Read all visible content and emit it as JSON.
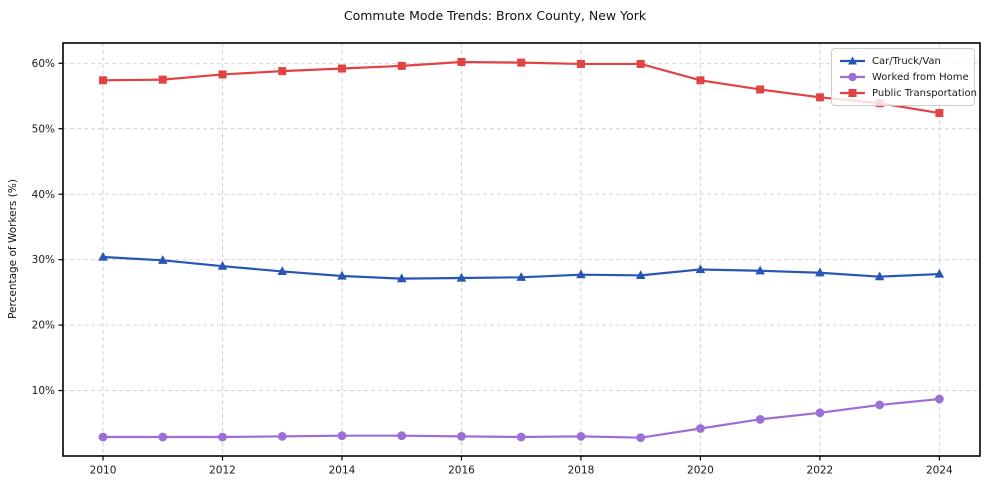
{
  "chart_data": {
    "type": "line",
    "title": "Commute Mode Trends: Bronx County, New York",
    "xlabel": "",
    "ylabel": "Percentage of Workers (%)",
    "x": [
      2010,
      2011,
      2012,
      2013,
      2014,
      2015,
      2016,
      2017,
      2018,
      2019,
      2020,
      2021,
      2022,
      2023,
      2024
    ],
    "x_tick_labels": [
      "2010",
      "2012",
      "2014",
      "2016",
      "2018",
      "2020",
      "2022",
      "2024"
    ],
    "x_ticks": [
      2010,
      2012,
      2014,
      2016,
      2018,
      2020,
      2022,
      2024
    ],
    "y_ticks": [
      10,
      20,
      30,
      40,
      50,
      60
    ],
    "y_tick_suffix": "%",
    "xlim": [
      2009.33,
      2024.68
    ],
    "ylim": [
      0,
      63.1
    ],
    "grid": true,
    "grid_style": "dashed",
    "legend_position": "upper right",
    "series": [
      {
        "name": "Car/Truck/Van",
        "color": "#2856b4",
        "marker": "triangle",
        "values": [
          30.4,
          29.9,
          29.0,
          28.2,
          27.5,
          27.1,
          27.2,
          27.3,
          27.7,
          27.6,
          28.5,
          28.3,
          28.0,
          27.4,
          27.8
        ]
      },
      {
        "name": "Worked from Home",
        "color": "#9b6fd6",
        "marker": "circle",
        "values": [
          2.9,
          2.9,
          2.9,
          3.0,
          3.1,
          3.1,
          3.0,
          2.9,
          3.0,
          2.8,
          4.2,
          5.6,
          6.6,
          7.8,
          8.7
        ]
      },
      {
        "name": "Public Transportation",
        "color": "#e14343",
        "marker": "square",
        "values": [
          57.4,
          57.5,
          58.3,
          58.8,
          59.2,
          59.6,
          60.2,
          60.1,
          59.9,
          59.9,
          57.4,
          56.0,
          54.8,
          53.9,
          52.4
        ]
      }
    ],
    "colors": {
      "frame": "#000000",
      "gridline": "#cfcfcf",
      "tick_label": "#1a1a1a",
      "background": "#ffffff"
    }
  }
}
